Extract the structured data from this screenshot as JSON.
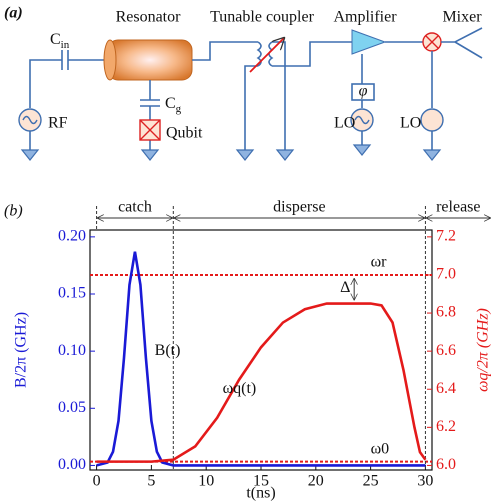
{
  "diagram": {
    "panel_label": "(a)",
    "resonator": "Resonator",
    "coupler": "Tunable coupler",
    "amplifier": "Amplifier",
    "mixer": "Mixer",
    "cap_in": "C",
    "cap_in_sub": "in",
    "cap_g": "C",
    "cap_g_sub": "g",
    "source_rf": "RF",
    "qubit": "Qubit",
    "phase": "φ",
    "lo_1": "LO",
    "lo_2": "LO"
  },
  "chart_data": {
    "type": "line",
    "panel_label": "(b)",
    "xlabel": "t(ns)",
    "ylabel": "B/2π (GHz)",
    "y2label": "ωq/2π (GHz)",
    "xlim": [
      -0.6,
      30.6
    ],
    "ylim": [
      -0.004,
      0.206
    ],
    "y2lim": [
      5.976,
      7.236
    ],
    "xticks": [
      0,
      5,
      10,
      15,
      20,
      25,
      30
    ],
    "yticks": [
      {
        "value": 0,
        "label": "0.00"
      },
      {
        "value": 0.05,
        "label": "0.05"
      },
      {
        "value": 0.1,
        "label": "0.10"
      },
      {
        "value": 0.15,
        "label": "0.15"
      },
      {
        "value": 0.2,
        "label": "0.20"
      }
    ],
    "y2ticks": [
      {
        "value": 6,
        "label": "6.0"
      },
      {
        "value": 6.2,
        "label": "6.2"
      },
      {
        "value": 6.4,
        "label": "6.4"
      },
      {
        "value": 6.6,
        "label": "6.6"
      },
      {
        "value": 6.8,
        "label": "6.8"
      },
      {
        "value": 7,
        "label": "7.0"
      },
      {
        "value": 7.2,
        "label": "7.2"
      }
    ],
    "series": [
      {
        "name": "B(t)",
        "color": "#1a1ad6",
        "x": [
          0,
          1,
          1.5,
          2,
          2.5,
          3,
          3.5,
          4,
          4.5,
          5,
          5.5,
          6,
          7,
          10,
          30
        ],
        "values": [
          0,
          0.0025,
          0.012,
          0.039,
          0.094,
          0.158,
          0.187,
          0.158,
          0.094,
          0.039,
          0.012,
          0.0025,
          0,
          0,
          0
        ]
      },
      {
        "name": "ωq(t)",
        "color": "#e41a1a",
        "axis": "y2",
        "x": [
          0,
          5,
          7,
          9,
          11,
          13,
          15,
          17,
          19,
          21,
          23,
          25,
          26,
          27,
          28,
          29,
          29.5,
          30
        ],
        "values": [
          6.02,
          6.02,
          6.03,
          6.1,
          6.25,
          6.45,
          6.62,
          6.75,
          6.82,
          6.85,
          6.85,
          6.85,
          6.84,
          6.75,
          6.5,
          6.2,
          6.07,
          6.03
        ]
      }
    ],
    "reference_lines": [
      {
        "label": "ωr",
        "value": 7.0,
        "axis": "y2"
      },
      {
        "label": "ω0",
        "value": 6.02,
        "axis": "y2"
      }
    ],
    "phases": [
      {
        "label": "catch",
        "start": 0,
        "end": 7
      },
      {
        "label": "disperse",
        "start": 7,
        "end": 30
      },
      {
        "label": "release",
        "start": 30,
        "end": 36
      }
    ],
    "annotation": "Δ"
  }
}
